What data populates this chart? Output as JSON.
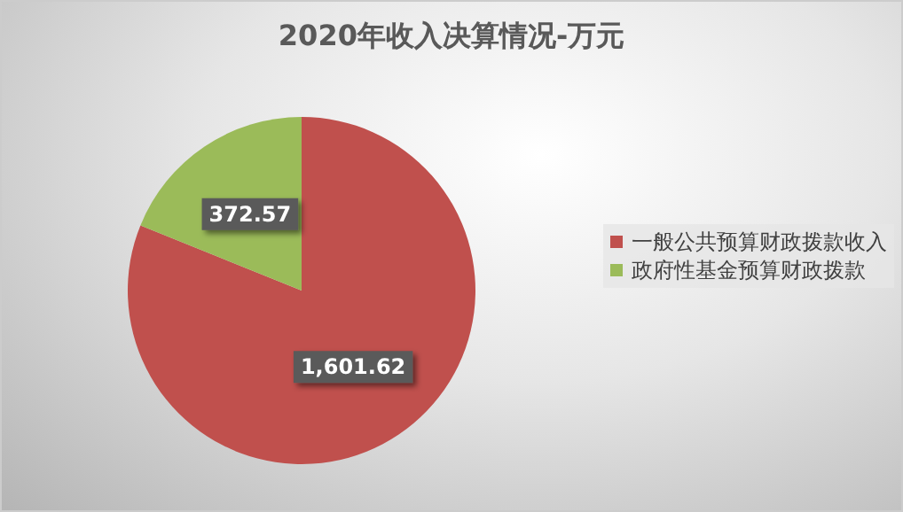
{
  "chart_data": {
    "type": "pie",
    "title": "2020年收入决算情况-万元",
    "categories": [
      "一般公共预算财政拨款收入",
      "政府性基金预算财政拨款"
    ],
    "values": [
      1601.62,
      372.57
    ],
    "value_labels": [
      "1,601.62",
      "372.57"
    ],
    "colors": [
      "#c0504d",
      "#9bbb59"
    ],
    "legend": "right"
  }
}
